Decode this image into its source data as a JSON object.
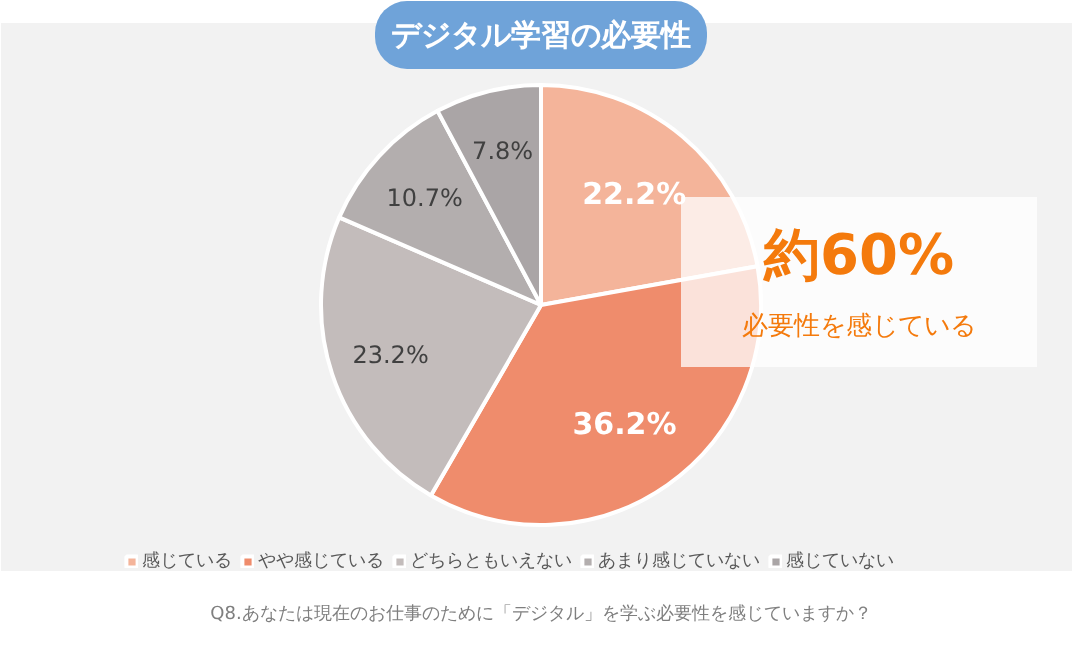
{
  "chart_data": {
    "type": "pie",
    "title": "デジタル学習の必要性",
    "categories": [
      "感じている",
      "やや感じている",
      "どちらともいえない",
      "あまり感じていない",
      "感じていない"
    ],
    "values": [
      22.2,
      36.2,
      23.2,
      10.7,
      7.8
    ],
    "colors": [
      "#f4b49a",
      "#ef8c6c",
      "#c3bcbb",
      "#b3aeae",
      "#aaa5a6"
    ],
    "value_labels": [
      "22.2%",
      "36.2%",
      "23.2%",
      "10.7%",
      "7.8%"
    ],
    "legend": "bottom",
    "annotations": [
      "約60%",
      "必要性を感じている",
      "Q8.あなたは現在のお仕事のために「デジタル」を学ぶ必要性を感じていますか？"
    ]
  }
}
